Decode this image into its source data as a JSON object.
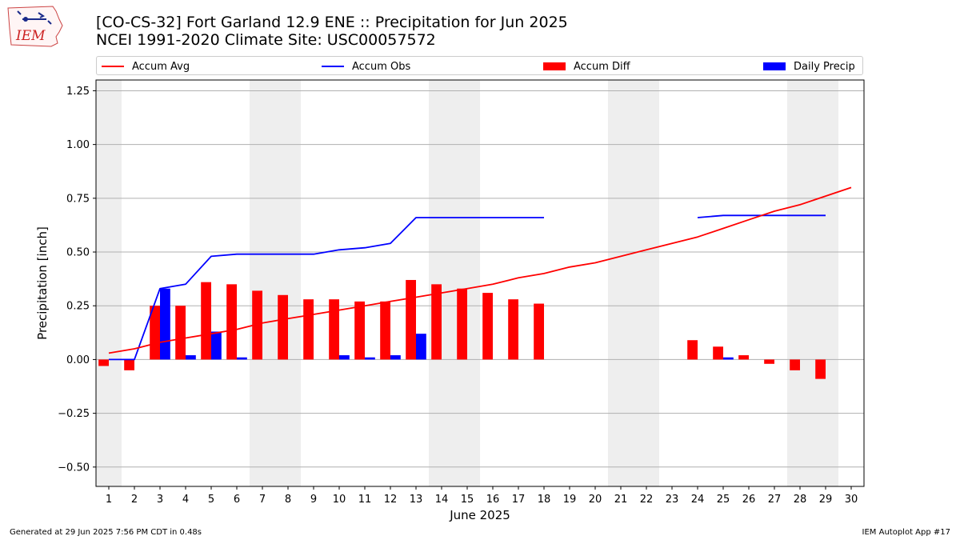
{
  "header": {
    "title_line1": "[CO-CS-32] Fort Garland 12.9 ENE :: Precipitation for Jun 2025",
    "title_line2": "NCEI 1991-2020 Climate Site: USC00057572",
    "logo_text": "IEM"
  },
  "legend": {
    "accum_avg": "Accum Avg",
    "accum_obs": "Accum Obs",
    "accum_diff": "Accum Diff",
    "daily_precip": "Daily Precip"
  },
  "footer": {
    "generated": "Generated at 29 Jun 2025 7:56 PM CDT in 0.48s",
    "app": "IEM Autoplot App #17"
  },
  "colors": {
    "accum_avg": "#ff0000",
    "accum_obs": "#0000ff",
    "accum_diff": "#ff0000",
    "daily_precip": "#0000ff",
    "weekend_shade": "#eeeeee",
    "grid": "#b0b0b0"
  },
  "chart_data": {
    "type": "bar",
    "xlabel": "June 2025",
    "ylabel": "Precipitation [inch]",
    "xlim": [
      0.5,
      30.5
    ],
    "ylim": [
      -0.59,
      1.3
    ],
    "yticks": [
      -0.5,
      -0.25,
      0.0,
      0.25,
      0.5,
      0.75,
      1.0,
      1.25
    ],
    "ytick_labels": [
      "−0.50",
      "−0.25",
      "0.00",
      "0.25",
      "0.50",
      "0.75",
      "1.00",
      "1.25"
    ],
    "x": [
      1,
      2,
      3,
      4,
      5,
      6,
      7,
      8,
      9,
      10,
      11,
      12,
      13,
      14,
      15,
      16,
      17,
      18,
      19,
      20,
      21,
      22,
      23,
      24,
      25,
      26,
      27,
      28,
      29,
      30
    ],
    "x_labels": [
      "1",
      "2",
      "3",
      "4",
      "5",
      "6",
      "7",
      "8",
      "9",
      "10",
      "11",
      "12",
      "13",
      "14",
      "15",
      "16",
      "17",
      "18",
      "19",
      "20",
      "21",
      "22",
      "23",
      "24",
      "25",
      "26",
      "27",
      "28",
      "29",
      "30"
    ],
    "grid": "horizontal",
    "legend_position": "top",
    "weekend_shaded_days": [
      1,
      7,
      8,
      14,
      15,
      21,
      22,
      28,
      29
    ],
    "series": [
      {
        "name": "Accum Avg",
        "type": "line",
        "values": [
          0.03,
          0.05,
          0.08,
          0.1,
          0.12,
          0.14,
          0.17,
          0.19,
          0.21,
          0.23,
          0.25,
          0.27,
          0.29,
          0.31,
          0.33,
          0.35,
          0.38,
          0.4,
          0.43,
          0.45,
          0.48,
          0.51,
          0.54,
          0.57,
          0.61,
          0.65,
          0.69,
          0.72,
          0.76,
          0.8
        ]
      },
      {
        "name": "Accum Obs",
        "type": "line",
        "values": [
          0.0,
          0.0,
          0.33,
          0.35,
          0.48,
          0.49,
          0.49,
          0.49,
          0.49,
          0.51,
          0.52,
          0.54,
          0.66,
          0.66,
          0.66,
          0.66,
          0.66,
          0.66,
          null,
          null,
          null,
          null,
          null,
          0.66,
          0.67,
          0.67,
          0.67,
          0.67,
          0.67,
          null
        ]
      },
      {
        "name": "Accum Diff",
        "type": "bar",
        "values": [
          -0.03,
          -0.05,
          0.25,
          0.25,
          0.36,
          0.35,
          0.32,
          0.3,
          0.28,
          0.28,
          0.27,
          0.27,
          0.37,
          0.35,
          0.33,
          0.31,
          0.28,
          0.26,
          null,
          null,
          null,
          null,
          null,
          0.09,
          0.06,
          0.02,
          -0.02,
          -0.05,
          -0.09,
          null
        ]
      },
      {
        "name": "Daily Precip",
        "type": "bar",
        "values": [
          0.0,
          0.0,
          0.33,
          0.02,
          0.13,
          0.01,
          0.0,
          0.0,
          0.0,
          0.02,
          0.01,
          0.02,
          0.12,
          0.0,
          0.0,
          0.0,
          0.0,
          0.0,
          null,
          null,
          null,
          null,
          null,
          0.0,
          0.01,
          0.0,
          0.0,
          0.0,
          0.0,
          null
        ]
      }
    ]
  }
}
